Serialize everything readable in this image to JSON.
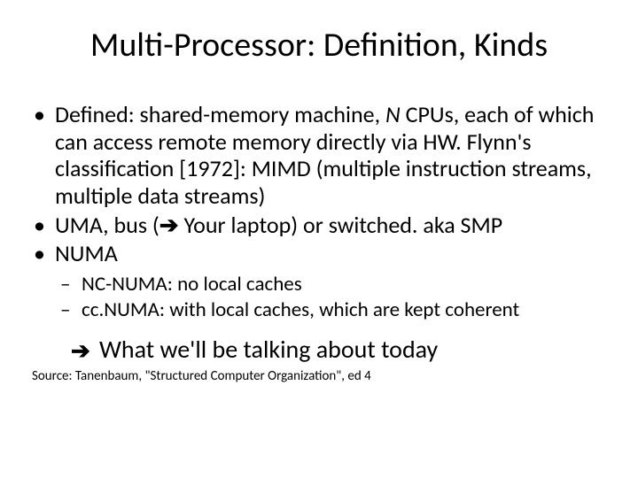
{
  "title": "Multi-Processor: Definition, Kinds",
  "bullets": {
    "b1_pre": "Defined: shared-memory machine, ",
    "b1_ital": "N",
    "b1_post": " CPUs, each of which can access remote memory directly via HW. Flynn's classification [1972]: MIMD (multiple instruction streams, multiple data streams)",
    "b2_pre": "UMA, bus (",
    "b2_arrow": "➔",
    "b2_post": " Your laptop) or switched.  aka SMP",
    "b3": "NUMA",
    "sub1": "NC-NUMA: no local caches",
    "sub2": "cc.NUMA: with local caches, which are kept coherent"
  },
  "conclusion": {
    "arrow": "➔",
    "text": "What we'll be talking about today"
  },
  "source": "Source: Tanenbaum, \"Structured Computer Organization\", ed 4",
  "style": {
    "background": "#ffffff",
    "text_color": "#000000",
    "title_fontsize": 38,
    "body_fontsize": 26,
    "sub_fontsize": 23,
    "conclusion_fontsize": 28,
    "source_fontsize": 15,
    "font_family": "Calibri"
  }
}
